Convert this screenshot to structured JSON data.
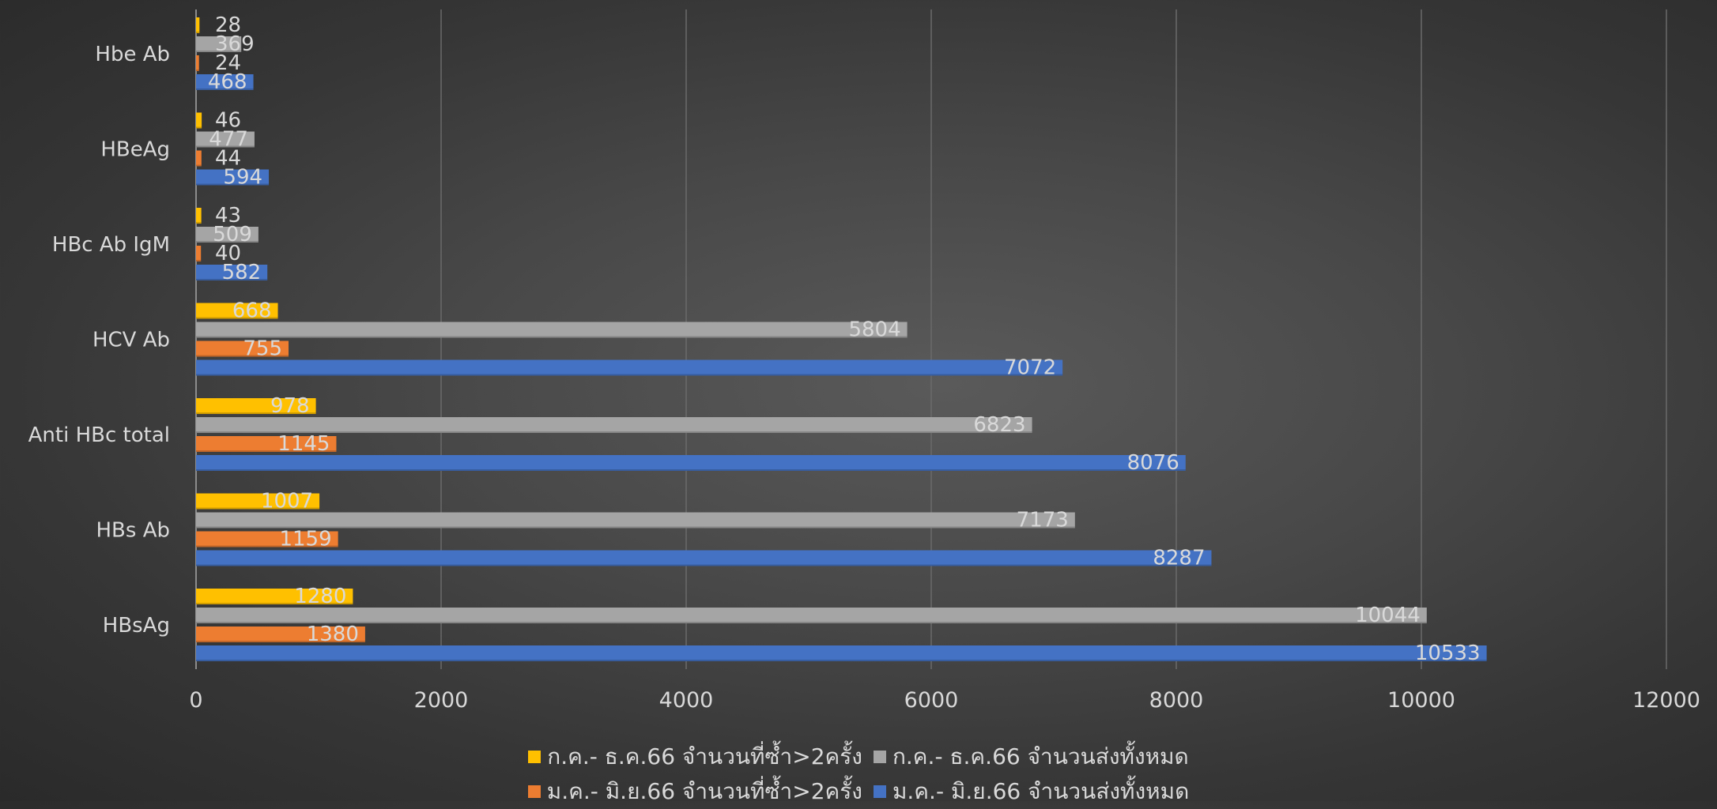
{
  "chart_data": {
    "type": "bar",
    "orientation": "horizontal",
    "title": "",
    "xlabel": "",
    "ylabel": "",
    "xlim": [
      0,
      12000
    ],
    "x_ticks": [
      0,
      2000,
      4000,
      6000,
      8000,
      10000,
      12000
    ],
    "grid": true,
    "legend_position": "bottom",
    "categories": [
      "HBsAg",
      "HBs Ab",
      "Anti HBc total",
      "HCV Ab",
      "HBc Ab IgM",
      "HBeAg",
      "Hbe Ab"
    ],
    "series": [
      {
        "name": "ม.ค.- มิ.ย.66 จำนวนส่งทั้งหมด",
        "color": "#4472C4",
        "values": [
          10533,
          8287,
          8076,
          7072,
          582,
          594,
          468
        ]
      },
      {
        "name": "ม.ค.- มิ.ย.66 จำนวนที่ซ้ำ>2ครั้ง",
        "color": "#ED7D31",
        "values": [
          1380,
          1159,
          1145,
          755,
          40,
          44,
          24
        ]
      },
      {
        "name": "ก.ค.- ธ.ค.66 จำนวนส่งทั้งหมด",
        "color": "#A5A5A5",
        "values": [
          10044,
          7173,
          6823,
          5804,
          509,
          477,
          369
        ]
      },
      {
        "name": "ก.ค.- ธ.ค.66 จำนวนที่ซ้ำ>2ครั้ง",
        "color": "#FFC000",
        "values": [
          1280,
          1007,
          978,
          668,
          43,
          46,
          28
        ]
      }
    ],
    "legend_rows": [
      [
        3,
        2
      ],
      [
        1,
        0
      ]
    ]
  }
}
